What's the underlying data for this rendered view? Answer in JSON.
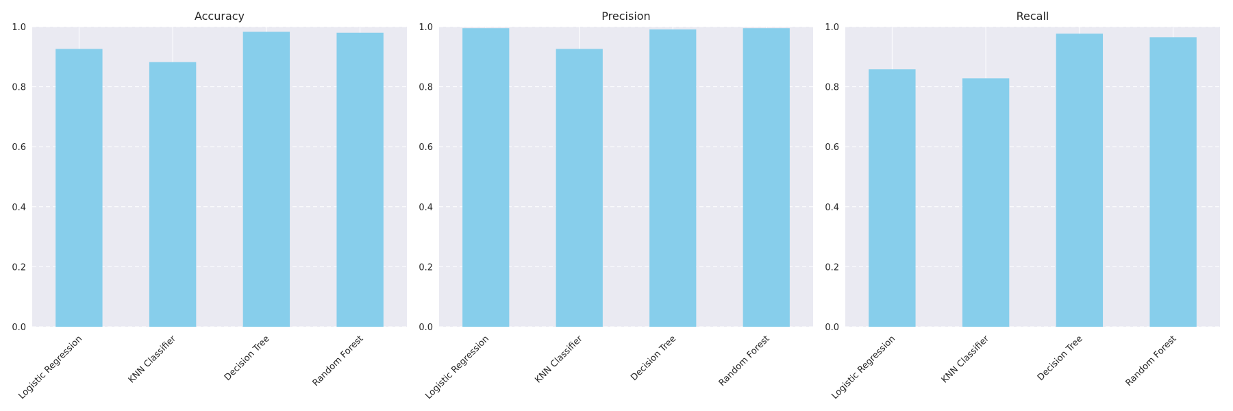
{
  "chart_data": [
    {
      "type": "bar",
      "title": "Accuracy",
      "categories": [
        "Logistic Regression",
        "KNN Classifier",
        "Decision Tree",
        "Random Forest"
      ],
      "values": [
        0.926,
        0.882,
        0.983,
        0.98
      ],
      "ylim": [
        0,
        1.0
      ],
      "yticks": [
        "0.0",
        "0.2",
        "0.4",
        "0.6",
        "0.8",
        "1.0"
      ],
      "grid": true,
      "bar_color": "#87CEEB"
    },
    {
      "type": "bar",
      "title": "Precision",
      "categories": [
        "Logistic Regression",
        "KNN Classifier",
        "Decision Tree",
        "Random Forest"
      ],
      "values": [
        0.995,
        0.926,
        0.991,
        0.995
      ],
      "ylim": [
        0,
        1.0
      ],
      "yticks": [
        "0.0",
        "0.2",
        "0.4",
        "0.6",
        "0.8",
        "1.0"
      ],
      "grid": true,
      "bar_color": "#87CEEB"
    },
    {
      "type": "bar",
      "title": "Recall",
      "categories": [
        "Logistic Regression",
        "KNN Classifier",
        "Decision Tree",
        "Random Forest"
      ],
      "values": [
        0.858,
        0.828,
        0.977,
        0.965
      ],
      "ylim": [
        0,
        1.0
      ],
      "yticks": [
        "0.0",
        "0.2",
        "0.4",
        "0.6",
        "0.8",
        "1.0"
      ],
      "grid": true,
      "bar_color": "#87CEEB"
    }
  ],
  "colors": {
    "plot_background": "#EAEAF2",
    "grid": "#FFFFFF",
    "bar": "#87CEEB"
  }
}
